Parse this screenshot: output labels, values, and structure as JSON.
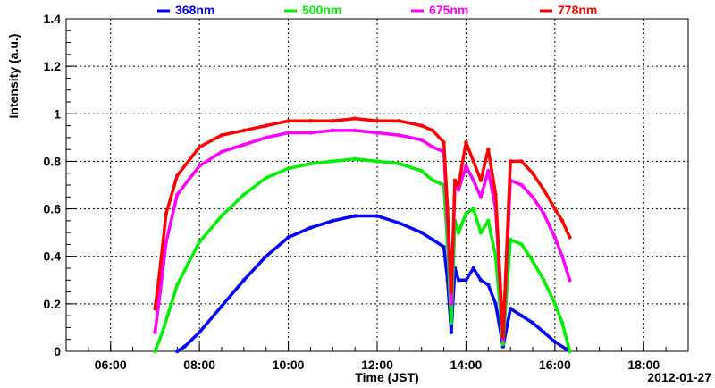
{
  "chart_data": {
    "type": "scatter",
    "title": "",
    "xlabel": "Time (JST)",
    "ylabel": "Intensity (a.u.)",
    "date_label": "2012-01-27",
    "xlim": [
      "05:00",
      "19:00"
    ],
    "ylim": [
      0,
      1.4
    ],
    "x_ticks": [
      "06:00",
      "08:00",
      "10:00",
      "12:00",
      "14:00",
      "16:00",
      "18:00"
    ],
    "y_ticks": [
      "0",
      "0.2",
      "0.4",
      "0.6",
      "0.8",
      "1",
      "1.2",
      "1.4"
    ],
    "grid": true,
    "legend_position": "top",
    "series": [
      {
        "name": "368nm",
        "color": "#0000ff",
        "x": [
          "07:30",
          "07:40",
          "08:00",
          "08:30",
          "09:00",
          "09:30",
          "10:00",
          "10:30",
          "11:00",
          "11:30",
          "12:00",
          "12:30",
          "13:00",
          "13:15",
          "13:30",
          "13:35",
          "13:40",
          "13:45",
          "13:50",
          "14:00",
          "14:10",
          "14:20",
          "14:30",
          "14:40",
          "14:50",
          "15:00",
          "15:15",
          "15:30",
          "15:45",
          "16:00",
          "16:15",
          "16:20"
        ],
        "y": [
          0.0,
          0.02,
          0.08,
          0.19,
          0.3,
          0.4,
          0.48,
          0.52,
          0.55,
          0.57,
          0.57,
          0.54,
          0.5,
          0.47,
          0.44,
          0.3,
          0.08,
          0.35,
          0.3,
          0.3,
          0.35,
          0.3,
          0.28,
          0.2,
          0.02,
          0.18,
          0.15,
          0.12,
          0.08,
          0.04,
          0.01,
          0.0
        ]
      },
      {
        "name": "500nm",
        "color": "#00ee00",
        "x": [
          "07:00",
          "07:10",
          "07:30",
          "08:00",
          "08:30",
          "09:00",
          "09:30",
          "10:00",
          "10:30",
          "11:00",
          "11:30",
          "12:00",
          "12:30",
          "13:00",
          "13:15",
          "13:30",
          "13:35",
          "13:40",
          "13:45",
          "13:50",
          "14:00",
          "14:10",
          "14:20",
          "14:30",
          "14:40",
          "14:50",
          "15:00",
          "15:15",
          "15:30",
          "15:45",
          "16:00",
          "16:10",
          "16:20"
        ],
        "y": [
          0.0,
          0.08,
          0.28,
          0.46,
          0.57,
          0.66,
          0.73,
          0.77,
          0.79,
          0.8,
          0.81,
          0.8,
          0.79,
          0.76,
          0.72,
          0.7,
          0.45,
          0.12,
          0.55,
          0.5,
          0.58,
          0.6,
          0.5,
          0.55,
          0.4,
          0.03,
          0.47,
          0.45,
          0.38,
          0.3,
          0.2,
          0.12,
          0.0
        ]
      },
      {
        "name": "675nm",
        "color": "#ff00ff",
        "x": [
          "07:00",
          "07:05",
          "07:15",
          "07:30",
          "08:00",
          "08:30",
          "09:00",
          "09:30",
          "10:00",
          "10:30",
          "11:00",
          "11:30",
          "12:00",
          "12:30",
          "13:00",
          "13:15",
          "13:30",
          "13:35",
          "13:40",
          "13:45",
          "13:50",
          "14:00",
          "14:10",
          "14:20",
          "14:30",
          "14:40",
          "14:50",
          "15:00",
          "15:15",
          "15:30",
          "15:45",
          "16:00",
          "16:10",
          "16:20"
        ],
        "y": [
          0.08,
          0.2,
          0.46,
          0.66,
          0.78,
          0.84,
          0.87,
          0.9,
          0.92,
          0.92,
          0.93,
          0.93,
          0.92,
          0.91,
          0.89,
          0.86,
          0.84,
          0.55,
          0.2,
          0.7,
          0.68,
          0.78,
          0.72,
          0.65,
          0.76,
          0.6,
          0.05,
          0.72,
          0.7,
          0.65,
          0.58,
          0.48,
          0.4,
          0.3
        ]
      },
      {
        "name": "778nm",
        "color": "#ff0000",
        "x": [
          "07:00",
          "07:05",
          "07:15",
          "07:30",
          "08:00",
          "08:30",
          "09:00",
          "09:30",
          "10:00",
          "10:30",
          "11:00",
          "11:30",
          "12:00",
          "12:30",
          "13:00",
          "13:15",
          "13:30",
          "13:35",
          "13:40",
          "13:45",
          "13:50",
          "14:00",
          "14:10",
          "14:20",
          "14:30",
          "14:40",
          "14:50",
          "15:00",
          "15:15",
          "15:30",
          "15:45",
          "16:00",
          "16:10",
          "16:20"
        ],
        "y": [
          0.18,
          0.3,
          0.58,
          0.74,
          0.86,
          0.91,
          0.93,
          0.95,
          0.97,
          0.97,
          0.97,
          0.98,
          0.97,
          0.97,
          0.95,
          0.93,
          0.88,
          0.6,
          0.25,
          0.72,
          0.7,
          0.88,
          0.8,
          0.72,
          0.85,
          0.66,
          0.06,
          0.8,
          0.8,
          0.75,
          0.68,
          0.6,
          0.55,
          0.48
        ]
      }
    ]
  }
}
